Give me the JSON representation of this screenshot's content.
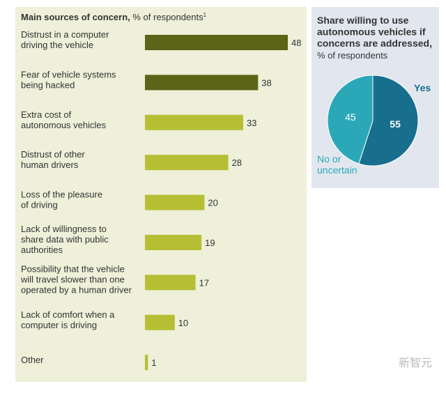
{
  "chart_data": [
    {
      "type": "hbar",
      "title": "Main sources of concern,",
      "subtitle": "% of respondents",
      "title_note": "1",
      "categories": [
        "Distrust in a computer\ndriving the vehicle",
        "Fear of vehicle systems\nbeing hacked",
        "Extra cost of\nautonomous vehicles",
        "Distrust of other\nhuman drivers",
        "Loss of the pleasure\nof driving",
        "Lack of willingness to\nshare data with public\nauthorities",
        "Possibility that the vehicle\nwill travel slower than one\noperated by a human driver",
        "Lack of comfort when a\ncomputer is driving",
        "Other"
      ],
      "values": [
        48,
        38,
        33,
        28,
        20,
        19,
        17,
        10,
        1
      ],
      "colors": [
        "#5b6417",
        "#5b6417",
        "#b6bf34",
        "#b6bf34",
        "#b6bf34",
        "#b6bf34",
        "#b6bf34",
        "#b6bf34",
        "#b6bf34"
      ]
    },
    {
      "type": "pie",
      "title": "Share willing to use\nautonomous vehicles if\nconcerns are addressed,",
      "subtitle": "% of respondents",
      "categories": [
        "Yes",
        "No or\nuncertain"
      ],
      "values": [
        55,
        45
      ],
      "colors": [
        "#176f8d",
        "#2ba8b8"
      ],
      "label_colors": [
        "#176f8d",
        "#2ba8b8"
      ]
    }
  ],
  "watermark": "新智元"
}
